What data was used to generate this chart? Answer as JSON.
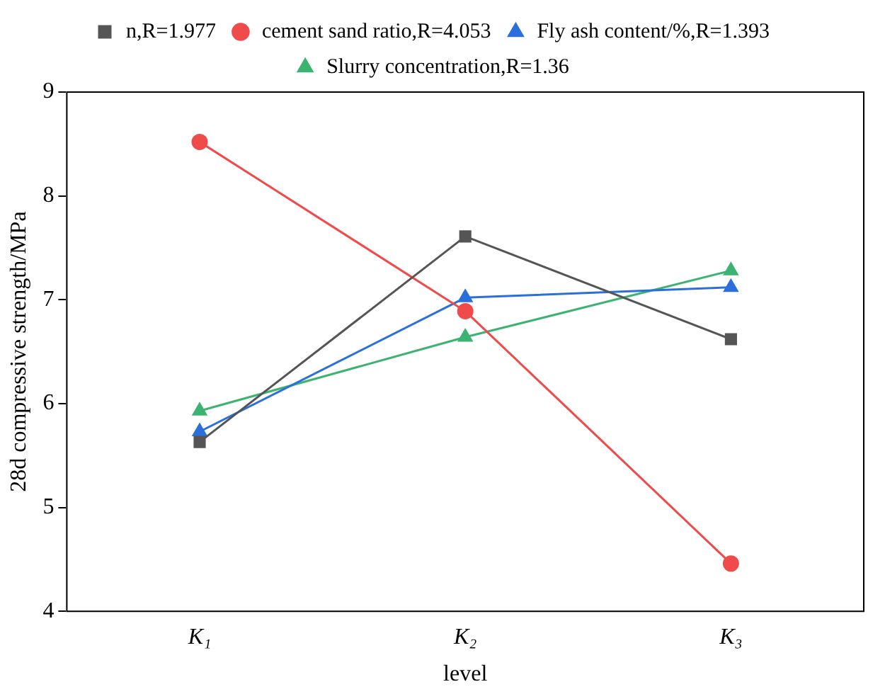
{
  "chart_data": {
    "type": "line",
    "xlabel": "level",
    "ylabel": "28d compressive strength/MPa",
    "categories": [
      "K₁",
      "K₂",
      "K₃"
    ],
    "series": [
      {
        "name": "n,R=1.977",
        "color": "#555555",
        "marker": "square",
        "values": [
          5.63,
          7.61,
          6.62
        ]
      },
      {
        "name": "cement sand ratio,R=4.053",
        "color": "#f04b4b",
        "marker": "circle",
        "values": [
          8.52,
          6.89,
          4.46
        ]
      },
      {
        "name": "Fly ash content/%,R=1.393",
        "color": "#2a6fdb",
        "marker": "triangle",
        "values": [
          5.73,
          7.02,
          7.12
        ]
      },
      {
        "name": "Slurry concentration,R=1.36",
        "color": "#3cb371",
        "marker": "triangle",
        "values": [
          5.93,
          6.64,
          7.28
        ]
      }
    ],
    "ylim": [
      4,
      9
    ],
    "yticks": [
      4,
      5,
      6,
      7,
      8,
      9
    ],
    "grid": false,
    "legend": "top",
    "line_style": "solid"
  }
}
